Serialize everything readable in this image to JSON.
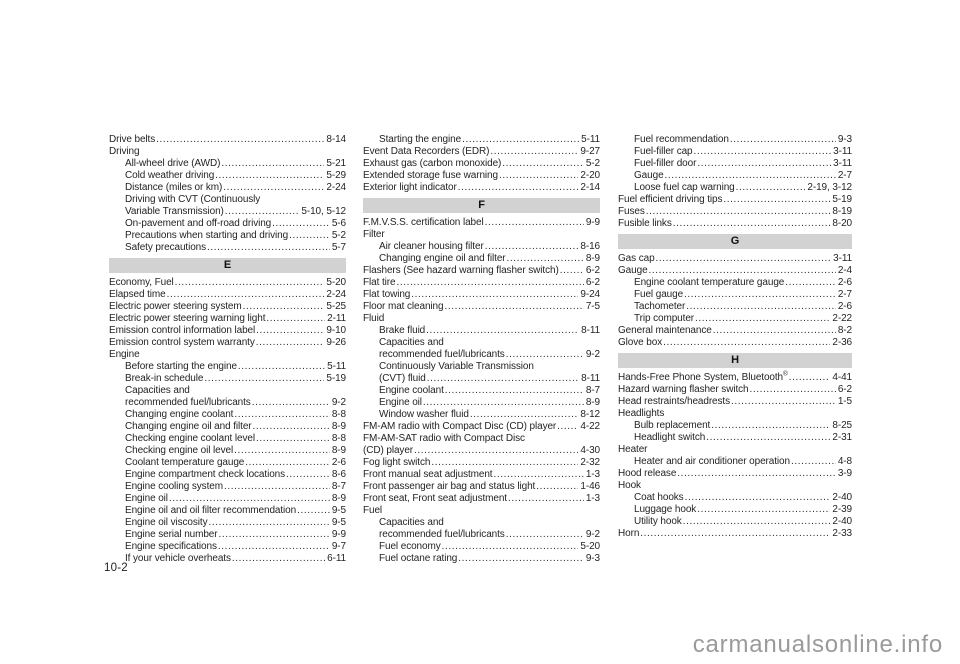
{
  "page": {
    "number": "10-2",
    "watermark": "carmanualsonline.info"
  },
  "index": {
    "columns": [
      {
        "entries": [
          {
            "t": "Drive belts",
            "p": "8-14",
            "i": 0
          },
          {
            "t": "Driving",
            "i": 0
          },
          {
            "t": "All-wheel drive (AWD)",
            "p": "5-21",
            "i": 1
          },
          {
            "t": "Cold weather driving",
            "p": "5-29",
            "i": 1
          },
          {
            "t": "Distance (miles or km)",
            "p": "2-24",
            "i": 1
          },
          {
            "t": "Driving with CVT (Continuously",
            "i": 1
          },
          {
            "t": "Variable Transmission)",
            "p": "5-10, 5-12",
            "i": 1
          },
          {
            "t": "On-pavement and off-road driving",
            "p": "5-6",
            "i": 1
          },
          {
            "t": "Precautions when starting and driving",
            "p": "5-2",
            "i": 1
          },
          {
            "t": "Safety precautions",
            "p": "5-7",
            "i": 1
          },
          {
            "h": "E"
          },
          {
            "t": "Economy, Fuel",
            "p": "5-20",
            "i": 0
          },
          {
            "t": "Elapsed time",
            "p": "2-24",
            "i": 0
          },
          {
            "t": "Electric power steering system",
            "p": "5-25",
            "i": 0
          },
          {
            "t": "Electric power steering warning light",
            "p": "2-11",
            "i": 0
          },
          {
            "t": "Emission control information label",
            "p": "9-10",
            "i": 0
          },
          {
            "t": "Emission control system warranty",
            "p": "9-26",
            "i": 0
          },
          {
            "t": "Engine",
            "i": 0
          },
          {
            "t": "Before starting the engine",
            "p": "5-11",
            "i": 1
          },
          {
            "t": "Break-in schedule",
            "p": "5-19",
            "i": 1
          },
          {
            "t": "Capacities and",
            "i": 1
          },
          {
            "t": "recommended fuel/lubricants",
            "p": "9-2",
            "i": 1
          },
          {
            "t": "Changing engine coolant",
            "p": "8-8",
            "i": 1
          },
          {
            "t": "Changing engine oil and filter",
            "p": "8-9",
            "i": 1
          },
          {
            "t": "Checking engine coolant level",
            "p": "8-8",
            "i": 1
          },
          {
            "t": "Checking engine oil level",
            "p": "8-9",
            "i": 1
          },
          {
            "t": "Coolant temperature gauge",
            "p": "2-6",
            "i": 1
          },
          {
            "t": "Engine compartment check locations",
            "p": "8-6",
            "i": 1
          },
          {
            "t": "Engine cooling system",
            "p": "8-7",
            "i": 1
          },
          {
            "t": "Engine oil",
            "p": "8-9",
            "i": 1
          },
          {
            "t": "Engine oil and oil filter recommendation",
            "p": "9-5",
            "i": 1
          },
          {
            "t": "Engine oil viscosity",
            "p": "9-5",
            "i": 1
          },
          {
            "t": "Engine serial number",
            "p": "9-9",
            "i": 1
          },
          {
            "t": "Engine specifications",
            "p": "9-7",
            "i": 1
          },
          {
            "t": "If your vehicle overheats",
            "p": "6-11",
            "i": 1
          }
        ]
      },
      {
        "entries": [
          {
            "t": "Starting the engine",
            "p": "5-11",
            "i": 1
          },
          {
            "t": "Event Data Recorders (EDR)",
            "p": "9-27",
            "i": 0
          },
          {
            "t": "Exhaust gas (carbon monoxide)",
            "p": "5-2",
            "i": 0
          },
          {
            "t": "Extended storage fuse warning",
            "p": "2-20",
            "i": 0
          },
          {
            "t": "Exterior light indicator",
            "p": "2-14",
            "i": 0
          },
          {
            "h": "F"
          },
          {
            "t": "F.M.V.S.S. certification label",
            "p": "9-9",
            "i": 0
          },
          {
            "t": "Filter",
            "i": 0
          },
          {
            "t": "Air cleaner housing filter",
            "p": "8-16",
            "i": 1
          },
          {
            "t": "Changing engine oil and filter",
            "p": "8-9",
            "i": 1
          },
          {
            "t": "Flashers (See hazard warning flasher switch)",
            "p": "6-2",
            "i": 0
          },
          {
            "t": "Flat tire",
            "p": "6-2",
            "i": 0
          },
          {
            "t": "Flat towing",
            "p": "9-24",
            "i": 0
          },
          {
            "t": "Floor mat cleaning",
            "p": "7-5",
            "i": 0
          },
          {
            "t": "Fluid",
            "i": 0
          },
          {
            "t": "Brake fluid",
            "p": "8-11",
            "i": 1
          },
          {
            "t": "Capacities and",
            "i": 1
          },
          {
            "t": "recommended fuel/lubricants",
            "p": "9-2",
            "i": 1
          },
          {
            "t": "Continuously Variable Transmission",
            "i": 1
          },
          {
            "t": "(CVT) fluid",
            "p": "8-11",
            "i": 1
          },
          {
            "t": "Engine coolant",
            "p": "8-7",
            "i": 1
          },
          {
            "t": "Engine oil",
            "p": "8-9",
            "i": 1
          },
          {
            "t": "Window washer fluid",
            "p": "8-12",
            "i": 1
          },
          {
            "t": "FM-AM radio with Compact Disc (CD) player",
            "p": "4-22",
            "i": 0
          },
          {
            "t": "FM-AM-SAT radio with Compact Disc",
            "i": 0
          },
          {
            "t": "(CD) player",
            "p": "4-30",
            "i": 0
          },
          {
            "t": "Fog light switch",
            "p": "2-32",
            "i": 0
          },
          {
            "t": "Front manual seat adjustment",
            "p": "1-3",
            "i": 0
          },
          {
            "t": "Front passenger air bag and status light",
            "p": "1-46",
            "i": 0
          },
          {
            "t": "Front seat, Front seat adjustment",
            "p": "1-3",
            "i": 0
          },
          {
            "t": "Fuel",
            "i": 0
          },
          {
            "t": "Capacities and",
            "i": 1
          },
          {
            "t": "recommended fuel/lubricants",
            "p": "9-2",
            "i": 1
          },
          {
            "t": "Fuel economy",
            "p": "5-20",
            "i": 1
          },
          {
            "t": "Fuel octane rating",
            "p": "9-3",
            "i": 1
          }
        ]
      },
      {
        "entries": [
          {
            "t": "Fuel recommendation",
            "p": "9-3",
            "i": 1
          },
          {
            "t": "Fuel-filler cap",
            "p": "3-11",
            "i": 1
          },
          {
            "t": "Fuel-filler door",
            "p": "3-11",
            "i": 1
          },
          {
            "t": "Gauge",
            "p": "2-7",
            "i": 1
          },
          {
            "t": "Loose fuel cap warning",
            "p": "2-19, 3-12",
            "i": 1
          },
          {
            "t": "Fuel efficient driving tips",
            "p": "5-19",
            "i": 0
          },
          {
            "t": "Fuses",
            "p": "8-19",
            "i": 0
          },
          {
            "t": "Fusible links",
            "p": "8-20",
            "i": 0
          },
          {
            "h": "G"
          },
          {
            "t": "Gas cap",
            "p": "3-11",
            "i": 0
          },
          {
            "t": "Gauge",
            "p": "2-4",
            "i": 0
          },
          {
            "t": "Engine coolant temperature gauge",
            "p": "2-6",
            "i": 1
          },
          {
            "t": "Fuel gauge",
            "p": "2-7",
            "i": 1
          },
          {
            "t": "Tachometer",
            "p": "2-6",
            "i": 1
          },
          {
            "t": "Trip computer",
            "p": "2-22",
            "i": 1
          },
          {
            "t": "General maintenance",
            "p": "8-2",
            "i": 0
          },
          {
            "t": "Glove box",
            "p": "2-36",
            "i": 0
          },
          {
            "h": "H"
          },
          {
            "t": "Hands-Free Phone System, Bluetooth",
            "sup": "®",
            "p": "4-41",
            "i": 0
          },
          {
            "t": "Hazard warning flasher switch",
            "p": "6-2",
            "i": 0
          },
          {
            "t": "Head restraints/headrests",
            "p": "1-5",
            "i": 0
          },
          {
            "t": "Headlights",
            "i": 0
          },
          {
            "t": "Bulb replacement",
            "p": "8-25",
            "i": 1
          },
          {
            "t": "Headlight switch",
            "p": "2-31",
            "i": 1
          },
          {
            "t": "Heater",
            "i": 0
          },
          {
            "t": "Heater and air conditioner operation",
            "p": "4-8",
            "i": 1
          },
          {
            "t": "Hood release",
            "p": "3-9",
            "i": 0
          },
          {
            "t": "Hook",
            "i": 0
          },
          {
            "t": "Coat hooks",
            "p": "2-40",
            "i": 1
          },
          {
            "t": "Luggage hook",
            "p": "2-39",
            "i": 1
          },
          {
            "t": "Utility hook",
            "p": "2-40",
            "i": 1
          },
          {
            "t": "Horn",
            "p": "2-33",
            "i": 0
          }
        ]
      }
    ]
  }
}
